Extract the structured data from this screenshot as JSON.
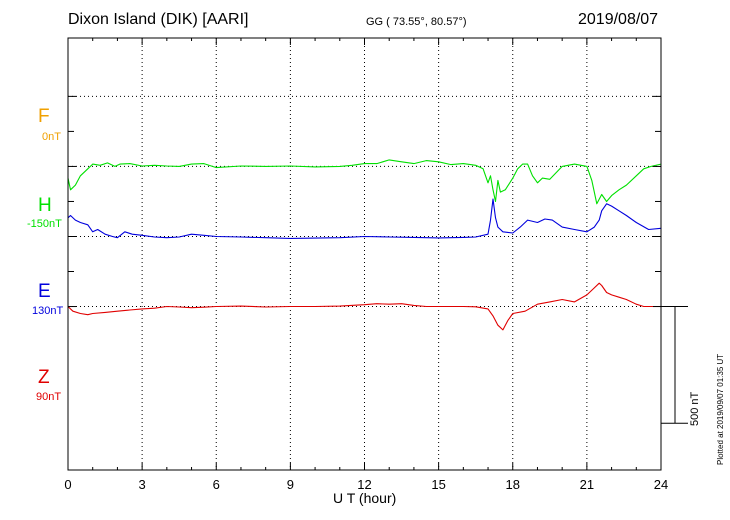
{
  "header": {
    "station": "Dixon Island (DIK)  [AARI]",
    "coords": "GG ( 73.55°,  80.57°)",
    "date": "2019/08/07"
  },
  "side_note": "Plotted at 2019/09/07 01:35 UT",
  "scale_label": "500 nT",
  "colors": {
    "F": "#f0a000",
    "H": "#00e000",
    "E": "#0000dd",
    "Z": "#e00000"
  },
  "chart_data": {
    "type": "line",
    "xlabel": "U T (hour)",
    "xlim": [
      0,
      24
    ],
    "xticks": [
      0,
      3,
      6,
      9,
      12,
      15,
      18,
      21,
      24
    ],
    "ylim": [
      -600,
      1250
    ],
    "channels": [
      {
        "name": "F",
        "offset": "0nT",
        "baseline": 1000
      },
      {
        "name": "H",
        "offset": "-150nT",
        "baseline": 700
      },
      {
        "name": "E",
        "offset": "130nT",
        "baseline": 400
      },
      {
        "name": "Z",
        "offset": "90nT",
        "baseline": 100
      }
    ],
    "series": [
      {
        "name": "H",
        "x": [
          0,
          0.1,
          0.3,
          0.5,
          0.8,
          1.0,
          1.3,
          1.6,
          1.9,
          2.1,
          2.5,
          3.0,
          3.5,
          4.0,
          4.5,
          5.0,
          5.5,
          6.0,
          7.0,
          8.0,
          9.0,
          10.0,
          11.0,
          11.5,
          12.0,
          12.5,
          13.0,
          13.5,
          14.0,
          14.5,
          15.0,
          15.5,
          16.0,
          16.5,
          16.8,
          17.0,
          17.1,
          17.2,
          17.3,
          17.4,
          17.5,
          17.7,
          18.0,
          18.2,
          18.4,
          18.6,
          18.8,
          19.0,
          19.2,
          19.5,
          20.0,
          20.5,
          21.0,
          21.2,
          21.4,
          21.6,
          21.8,
          22.0,
          22.3,
          22.6,
          23.0,
          23.3,
          23.6,
          24.0
        ],
        "y": [
          650,
          600,
          620,
          660,
          690,
          710,
          705,
          715,
          700,
          710,
          712,
          702,
          705,
          702,
          700,
          710,
          712,
          695,
          702,
          700,
          702,
          698,
          700,
          705,
          712,
          712,
          728,
          720,
          712,
          725,
          720,
          708,
          712,
          705,
          690,
          630,
          660,
          600,
          550,
          640,
          590,
          600,
          650,
          690,
          710,
          710,
          660,
          630,
          650,
          645,
          700,
          710,
          700,
          640,
          540,
          580,
          550,
          575,
          600,
          620,
          660,
          690,
          700,
          710
        ]
      },
      {
        "name": "E",
        "x": [
          0,
          0.1,
          0.3,
          0.5,
          0.8,
          1.0,
          1.2,
          1.5,
          1.8,
          2.0,
          2.3,
          2.6,
          3.0,
          3.5,
          4.0,
          4.5,
          5.0,
          5.5,
          6.0,
          7.0,
          8.0,
          9.0,
          10.0,
          11.0,
          12.0,
          13.0,
          14.0,
          15.0,
          16.0,
          16.5,
          17.0,
          17.1,
          17.2,
          17.3,
          17.4,
          17.6,
          18.0,
          18.3,
          18.6,
          19.0,
          19.3,
          19.6,
          20.0,
          20.5,
          21.0,
          21.3,
          21.5,
          21.6,
          21.8,
          22.0,
          22.3,
          22.6,
          23.0,
          23.5,
          24.0
        ],
        "y": [
          480,
          490,
          470,
          460,
          450,
          420,
          430,
          410,
          400,
          395,
          420,
          410,
          405,
          398,
          395,
          398,
          410,
          405,
          400,
          398,
          395,
          392,
          393,
          395,
          400,
          398,
          396,
          394,
          396,
          398,
          410,
          470,
          560,
          480,
          440,
          420,
          415,
          440,
          470,
          460,
          475,
          470,
          440,
          430,
          420,
          440,
          470,
          510,
          540,
          530,
          510,
          490,
          460,
          430,
          435
        ]
      },
      {
        "name": "Z",
        "x": [
          0,
          0.2,
          0.5,
          0.8,
          1.0,
          1.5,
          2.0,
          2.5,
          3.0,
          3.5,
          4.0,
          4.5,
          5.0,
          5.5,
          6.0,
          7.0,
          8.0,
          9.0,
          10.0,
          11.0,
          12.0,
          12.5,
          13.0,
          13.5,
          14.0,
          14.5,
          15.0,
          16.0,
          16.5,
          17.0,
          17.2,
          17.4,
          17.6,
          17.8,
          18.0,
          18.5,
          19.0,
          19.5,
          20.0,
          20.5,
          21.0,
          21.3,
          21.5,
          21.6,
          21.8,
          22.0,
          22.3,
          22.6,
          23.0,
          23.3,
          23.6,
          24.0
        ],
        "y": [
          100,
          80,
          70,
          65,
          70,
          75,
          80,
          85,
          90,
          93,
          100,
          98,
          95,
          97,
          100,
          102,
          98,
          100,
          100,
          102,
          108,
          112,
          110,
          112,
          105,
          100,
          100,
          100,
          99,
          90,
          60,
          20,
          0,
          40,
          70,
          80,
          110,
          120,
          130,
          120,
          150,
          180,
          200,
          190,
          160,
          150,
          140,
          130,
          110,
          100,
          100,
          100
        ]
      }
    ]
  }
}
